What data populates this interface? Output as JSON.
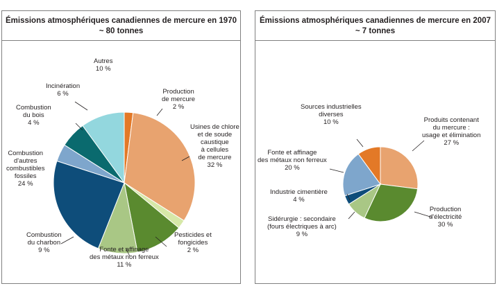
{
  "chart_data": [
    {
      "type": "pie",
      "title": "Émissions atmosphériques canadiennes de mercure en 1970",
      "subtitle": "~ 80 tonnes",
      "slices": [
        {
          "label": "Production de mercure",
          "value": 2,
          "value_text": "2 %",
          "color": "#e37927"
        },
        {
          "label": "Usines de chlore et de soude caustique à cellules de mercure",
          "value": 32,
          "value_text": "32 %",
          "color": "#e8a36f"
        },
        {
          "label": "Pesticides et fongicides",
          "value": 2,
          "value_text": "2 %",
          "color": "#d6e8a8"
        },
        {
          "label": "Fonte et affinage des métaux non ferreux",
          "value": 11,
          "value_text": "11 %",
          "color": "#5a8a2f"
        },
        {
          "label": "Combustion du charbon",
          "value": 9,
          "value_text": "9 %",
          "color": "#a9c785"
        },
        {
          "label": "Combustion d'autres combustibles fossiles",
          "value": 24,
          "value_text": "24 %",
          "color": "#0e4d7a"
        },
        {
          "label": "Combustion du bois",
          "value": 4,
          "value_text": "4 %",
          "color": "#7ea6cc"
        },
        {
          "label": "Incinération",
          "value": 6,
          "value_text": "6 %",
          "color": "#0a6a6e"
        },
        {
          "label": "Autres",
          "value": 10,
          "value_text": "10 %",
          "color": "#93d7de"
        }
      ]
    },
    {
      "type": "pie",
      "title": "Émissions atmosphériques canadiennes de mercure en 2007",
      "subtitle": "~ 7 tonnes",
      "slices": [
        {
          "label": "Produits contenant du mercure : usage et élimination",
          "value": 27,
          "value_text": "27 %",
          "color": "#e8a36f"
        },
        {
          "label": "Production d'électricité",
          "value": 30,
          "value_text": "30 %",
          "color": "#5a8a2f"
        },
        {
          "label": "Sidérurgie : secondaire (fours électriques à arc)",
          "value": 9,
          "value_text": "9 %",
          "color": "#a9c785"
        },
        {
          "label": "Industrie cimentière",
          "value": 4,
          "value_text": "4 %",
          "color": "#0e4d7a"
        },
        {
          "label": "Fonte et affinage des métaux non ferreux",
          "value": 20,
          "value_text": "20 %",
          "color": "#7ea6cc"
        },
        {
          "label": "Sources industrielles diverses",
          "value": 10,
          "value_text": "10 %",
          "color": "#e37927"
        }
      ]
    }
  ],
  "labels_1970": {
    "autres": [
      "Autres"
    ],
    "production_mercure": [
      "Production",
      "de mercure"
    ],
    "usines_chlore": [
      "Usines de chlore",
      "et de soude",
      "caustique",
      "à cellules",
      "de mercure"
    ],
    "pesticides": [
      "Pesticides et",
      "fongicides"
    ],
    "fonte": [
      "Fonte et affinage",
      "des métaux non ferreux"
    ],
    "charbon": [
      "Combustion",
      "du charbon"
    ],
    "autres_combustibles": [
      "Combustion",
      "d'autres",
      "combustibles",
      "fossiles"
    ],
    "bois": [
      "Combustion",
      "du bois"
    ],
    "incineration": [
      "Incinération"
    ]
  },
  "labels_2007": {
    "sources_diverses": [
      "Sources industrielles",
      "diverses"
    ],
    "produits": [
      "Produits contenant",
      "du mercure :",
      "usage et élimination"
    ],
    "fonte": [
      "Fonte et affinage",
      "des métaux non ferreux"
    ],
    "cimentiere": [
      "Industrie cimentière"
    ],
    "siderurgie": [
      "Sidérurgie : secondaire",
      "(fours électriques à arc)"
    ],
    "electricite": [
      "Production",
      "d'électricité"
    ]
  }
}
